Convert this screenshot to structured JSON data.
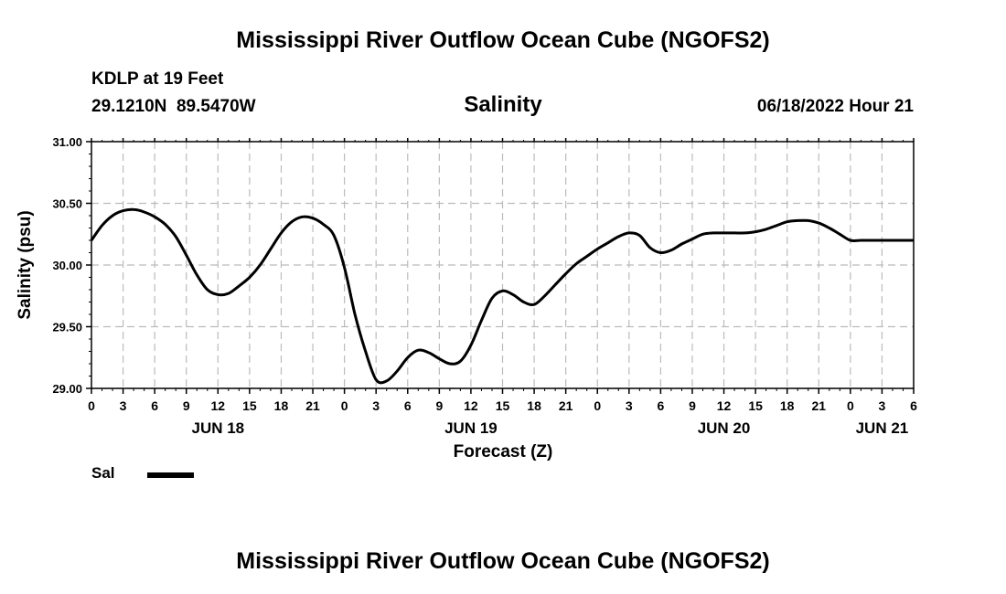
{
  "header": {
    "title": "Mississippi River Outflow Ocean Cube (NGOFS2)",
    "station": "KDLP at 19 Feet",
    "coords": "29.1210N  89.5470W",
    "subtitle": "Salinity",
    "datetime": "06/18/2022 Hour 21"
  },
  "legend": {
    "label": "Sal"
  },
  "footer": {
    "title": "Mississippi River Outflow Ocean Cube (NGOFS2)"
  },
  "chart_data": {
    "type": "line",
    "title": "Salinity",
    "xlabel": "Forecast (Z)",
    "ylabel": "Salinity (psu)",
    "xlim": [
      0,
      78
    ],
    "ylim": [
      29.0,
      31.0
    ],
    "y_ticks": [
      "29.00",
      "29.50",
      "30.00",
      "30.50",
      "31.00"
    ],
    "x_ticks": [
      "0",
      "3",
      "6",
      "9",
      "12",
      "15",
      "18",
      "21",
      "0",
      "3",
      "6",
      "9",
      "12",
      "15",
      "18",
      "21",
      "0",
      "3",
      "6",
      "9",
      "12",
      "15",
      "18",
      "21",
      "0",
      "3",
      "6"
    ],
    "day_labels": [
      {
        "label": "JUN 18",
        "hour": 12
      },
      {
        "label": "JUN 19",
        "hour": 36
      },
      {
        "label": "JUN 20",
        "hour": 60
      },
      {
        "label": "JUN 21",
        "hour": 75
      }
    ],
    "grid": true,
    "series": [
      {
        "name": "Sal",
        "color": "#000000",
        "x": [
          0,
          1,
          2,
          3,
          4,
          5,
          6,
          7,
          8,
          9,
          10,
          11,
          12,
          13,
          14,
          15,
          16,
          17,
          18,
          19,
          20,
          21,
          22,
          23,
          24,
          25,
          26,
          27,
          28,
          29,
          30,
          31,
          32,
          33,
          34,
          35,
          36,
          37,
          38,
          39,
          40,
          41,
          42,
          43,
          44,
          45,
          46,
          47,
          48,
          49,
          50,
          51,
          52,
          53,
          54,
          55,
          56,
          57,
          58,
          59,
          60,
          61,
          62,
          63,
          64,
          65,
          66,
          67,
          68,
          69,
          70,
          71,
          72,
          73,
          74,
          75,
          76,
          77,
          78
        ],
        "values": [
          30.2,
          30.32,
          30.4,
          30.44,
          30.45,
          30.43,
          30.39,
          30.33,
          30.23,
          30.08,
          29.92,
          29.8,
          29.76,
          29.77,
          29.83,
          29.9,
          30.0,
          30.13,
          30.26,
          30.35,
          30.39,
          30.38,
          30.33,
          30.24,
          29.98,
          29.6,
          29.3,
          29.07,
          29.06,
          29.14,
          29.25,
          29.31,
          29.29,
          29.24,
          29.2,
          29.22,
          29.35,
          29.55,
          29.73,
          29.79,
          29.76,
          29.7,
          29.68,
          29.75,
          29.84,
          29.93,
          30.01,
          30.07,
          30.13,
          30.18,
          30.23,
          30.26,
          30.24,
          30.14,
          30.1,
          30.12,
          30.17,
          30.21,
          30.25,
          30.26,
          30.26,
          30.26,
          30.26,
          30.27,
          30.29,
          30.32,
          30.35,
          30.36,
          30.36,
          30.34,
          30.3,
          30.25,
          30.2,
          30.2,
          30.2,
          30.2,
          30.2,
          30.2,
          30.2
        ]
      }
    ]
  }
}
